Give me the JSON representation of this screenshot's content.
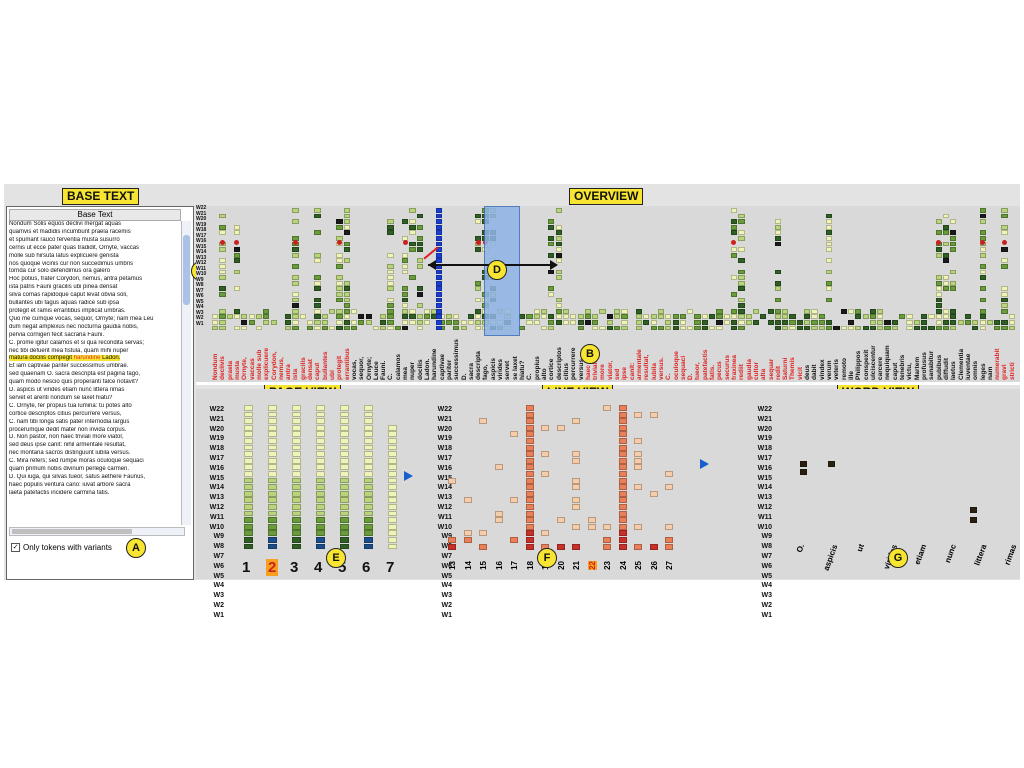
{
  "callouts": {
    "base_text": "BASE TEXT",
    "overview": "OVERVIEW",
    "page_view": "PAGE VIEW",
    "line_view": "LINE VIEW",
    "word_view": "WORD VIEW"
  },
  "markers": {
    "a": "A",
    "b": "B",
    "c": "C",
    "d": "D",
    "e": "E",
    "f": "F",
    "g": "G"
  },
  "base_text": {
    "header": "Base Text",
    "lines": [
      "Nondum Solis equos declivi mergat aquas",
      "quamvis et madidis incumbunt praela racemis",
      "et spumant rauco ferventia musta susurro",
      "cernis ut ecce pater quas tradidit, Ornyte, vaccas",
      "molle sub hirsuta latus explicuere genista",
      "nos quoque vicinis cur non succedimus umbris",
      "torrida cur solo defendimus ora galero",
      "Hoc potius, frater Corydon, nemus, antra petamus",
      "ista patris Fauni gracilis ubi pinea densat",
      "silva comas rapidoque caput levat obvia soli,",
      "bullantes ubi fagus aquas radice sub ipsa",
      "protegit et ramis errantibus implicat umbras.",
      "Quo me cumque vocas, sequor, Ornyte; nam mea Leu",
      "dum negat amplexus nec nocturna gaudia nobis,",
      "pervia cornigeri fecit sacraria Fauni.",
      "C. prome igitur calamos et si qua recondita servas;",
      "nec tibi defuerit mea fistula, quam mihi nuper",
      "matura docilis compegit harundine Ladon.",
      "Et iam captivae pariter successimus umbrae.",
      "sed quaenam O. sacra descripta est pagina fago,",
      "quam modo nescio quis properanti falce notavit?",
      "D. aspicis ut virides etiam nunc littera rimas",
      "servet et arenti nondum se laxet hiatu?",
      "C. Ornyte, fer propius tua lumina: tu potes alto",
      "cortice descriptos citius percurrere versus,",
      "C. nam tibi longa satis pater internodia largus",
      "procerumque dedit mater non invida corpus.",
      "D. Non pastor, non haec triviali more viator,",
      "sed deus ipse canit: nihil armentale resultat,",
      "nec montana sacros distinguunt iubila versus.",
      "C. Mira refers; sed rumpe moras oculoque sequaci",
      "quam primum nobis divinum perlege carmen.",
      "D. Qui iuga, qui silvas tueor, satus aethere Faunus,",
      "haec populis ventura cano: iuvat arbore sacra",
      "laeta patefactis incidere carmina fatis."
    ],
    "highlight_index": 17,
    "highlight_red_word": "harundine",
    "checkbox_label": "Only tokens with variants",
    "checkbox_checked": true
  },
  "overview": {
    "witness_labels": [
      "W22",
      "W21",
      "W20",
      "W19",
      "W18",
      "W17",
      "W16",
      "W15",
      "W14",
      "W13",
      "W12",
      "W11",
      "W10",
      "W9",
      "W8",
      "W7",
      "W6",
      "W5",
      "W4",
      "W3",
      "W2",
      "W1"
    ],
    "words": [
      {
        "t": "Nondum",
        "red": true
      },
      {
        "t": "declivis",
        "red": true
      },
      {
        "t": "praela",
        "red": true
      },
      {
        "t": "musta",
        "red": true
      },
      {
        "t": "Ornyte,",
        "red": true
      },
      {
        "t": "vaccas",
        "red": true
      },
      {
        "t": "molle sub",
        "red": true
      },
      {
        "t": "explicuere",
        "red": true
      },
      {
        "t": "Corydon,",
        "red": true
      },
      {
        "t": "nemus,",
        "red": true
      },
      {
        "t": "antra",
        "red": true
      },
      {
        "t": "ista",
        "red": true
      },
      {
        "t": "gracilis",
        "red": true
      },
      {
        "t": "densat",
        "red": true
      },
      {
        "t": "caput",
        "red": true
      },
      {
        "t": "bullantes",
        "red": true
      },
      {
        "t": "ubi",
        "red": true
      },
      {
        "t": "protegit",
        "red": true
      },
      {
        "t": "errantibus",
        "red": true
      },
      {
        "t": "vocas,",
        "red": false
      },
      {
        "t": "sequor,",
        "red": false
      },
      {
        "t": "Ornyte;",
        "red": false
      },
      {
        "t": "Leuce",
        "red": false
      },
      {
        "t": "Fauni.",
        "red": false
      },
      {
        "t": "C.",
        "red": false
      },
      {
        "t": "calamos",
        "red": false
      },
      {
        "t": "mea",
        "red": false
      },
      {
        "t": "nuper",
        "red": false
      },
      {
        "t": "docilis",
        "red": false
      },
      {
        "t": "Ladon.",
        "red": false
      },
      {
        "t": "harundine",
        "red": false
      },
      {
        "t": "captivae",
        "red": false
      },
      {
        "t": "pariter",
        "red": false
      },
      {
        "t": "successimus",
        "red": false
      },
      {
        "t": "D.",
        "red": false
      },
      {
        "t": "sacra",
        "red": false
      },
      {
        "t": "descripta",
        "red": false
      },
      {
        "t": "fago,",
        "red": false
      },
      {
        "t": "aspicis",
        "red": false
      },
      {
        "t": "virides",
        "red": false
      },
      {
        "t": "servet",
        "red": false
      },
      {
        "t": "se laxet",
        "red": false
      },
      {
        "t": "hiatu?",
        "red": false
      },
      {
        "t": "C.",
        "red": false
      },
      {
        "t": "propius",
        "red": false
      },
      {
        "t": "alto",
        "red": false
      },
      {
        "t": "cortice",
        "red": false
      },
      {
        "t": "descriptos",
        "red": false
      },
      {
        "t": "citius",
        "red": false
      },
      {
        "t": "percurrere",
        "red": false
      },
      {
        "t": "versus,",
        "red": false
      },
      {
        "t": "haec",
        "red": true
      },
      {
        "t": "triviali",
        "red": true
      },
      {
        "t": "more",
        "red": true
      },
      {
        "t": "viator,",
        "red": true
      },
      {
        "t": "sed",
        "red": true
      },
      {
        "t": "ipse",
        "red": true
      },
      {
        "t": "canit:",
        "red": true
      },
      {
        "t": "armentale",
        "red": true
      },
      {
        "t": "resultat,",
        "red": true
      },
      {
        "t": "iubila",
        "red": true
      },
      {
        "t": "versus.",
        "red": true
      },
      {
        "t": "C.",
        "red": true
      },
      {
        "t": "oculoque",
        "red": true
      },
      {
        "t": "sequaci",
        "red": true
      },
      {
        "t": "D.",
        "red": true
      },
      {
        "t": "tueor,",
        "red": true
      },
      {
        "t": "patefactis",
        "red": true
      },
      {
        "t": "fatis.",
        "red": true
      },
      {
        "t": "pecus",
        "red": true
      },
      {
        "t": "securus",
        "red": true
      },
      {
        "t": "fraxinea",
        "red": true
      },
      {
        "t": "rediit",
        "red": true
      },
      {
        "t": "gaudia",
        "red": true
      },
      {
        "t": "cultor",
        "red": true
      },
      {
        "t": "alta",
        "red": true
      },
      {
        "t": "sequar",
        "red": true
      },
      {
        "t": "redit",
        "red": true
      },
      {
        "t": "Saturni",
        "red": true
      },
      {
        "t": "Themis",
        "red": true
      },
      {
        "t": "vicit",
        "red": true
      },
      {
        "t": "deus",
        "red": false
      },
      {
        "t": "dabit",
        "red": false
      },
      {
        "t": "vindex",
        "red": false
      },
      {
        "t": "verum",
        "red": false
      },
      {
        "t": "veteris",
        "red": false
      },
      {
        "t": "remoto",
        "red": false
      },
      {
        "t": "ille",
        "red": false
      },
      {
        "t": "Philippos",
        "red": false
      },
      {
        "t": "conspexit",
        "red": false
      },
      {
        "t": "ulciscentur",
        "red": false
      },
      {
        "t": "carcere",
        "red": false
      },
      {
        "t": "nequiquam",
        "red": false
      },
      {
        "t": "caput",
        "red": false
      },
      {
        "t": "tenebris",
        "red": false
      },
      {
        "t": "victu,",
        "red": false
      },
      {
        "t": "Martem",
        "red": false
      },
      {
        "t": "profusus",
        "red": false
      },
      {
        "t": "sanabitur",
        "red": false
      },
      {
        "t": "pubibus",
        "red": false
      },
      {
        "t": "diffudit",
        "red": false
      },
      {
        "t": "laetus",
        "red": false
      },
      {
        "t": "Clementia",
        "red": false
      },
      {
        "t": "iuventae",
        "red": false
      },
      {
        "t": "omnis",
        "red": false
      },
      {
        "t": "leges",
        "red": false
      },
      {
        "t": "nam",
        "red": false
      },
      {
        "t": "numerabit",
        "red": true
      },
      {
        "t": "gravi",
        "red": true
      },
      {
        "t": "stricti",
        "red": true
      }
    ]
  },
  "page_view": {
    "witness_labels": [
      "W22",
      "W21",
      "W20",
      "W19",
      "W18",
      "W17",
      "W16",
      "W15",
      "W14",
      "W13",
      "W12",
      "W11",
      "W10",
      "W9",
      "W8",
      "W7",
      "W6",
      "W5",
      "W4",
      "W3",
      "W2",
      "W1"
    ],
    "pages": [
      "1",
      "2",
      "3",
      "4",
      "5",
      "6",
      "7"
    ],
    "selected_page": "2"
  },
  "line_view": {
    "witness_labels": [
      "W22",
      "W21",
      "W20",
      "W19",
      "W18",
      "W17",
      "W16",
      "W15",
      "W14",
      "W13",
      "W12",
      "W11",
      "W10",
      "W9",
      "W8",
      "W7",
      "W6",
      "W5",
      "W4",
      "W3",
      "W2",
      "W1"
    ],
    "lines": [
      "13",
      "14",
      "15",
      "16",
      "17",
      "18",
      "19",
      "20",
      "21",
      "22",
      "23",
      "24",
      "25",
      "26",
      "27"
    ],
    "selected_line": "22"
  },
  "word_view": {
    "witness_labels": [
      "W22",
      "W21",
      "W20",
      "W19",
      "W18",
      "W17",
      "W16",
      "W15",
      "W14",
      "W13",
      "W12",
      "W11",
      "W10",
      "W9",
      "W8",
      "W7",
      "W6",
      "W5",
      "W4",
      "W3",
      "W2",
      "W1"
    ],
    "words": [
      "O.",
      "aspicis",
      "ut",
      "virides",
      "etiam",
      "nunc",
      "littera",
      "rimas"
    ]
  },
  "colors": {
    "light": "#eef3b8",
    "mid": "#b9d47c",
    "dark": "#6a9c3c",
    "darkest": "#2f5f24",
    "blue_page": "#1d4e8c",
    "orange_light": "#f6cdaa",
    "orange": "#e9805a",
    "red": "#c8302a",
    "highlight_col": "#1b3fd6",
    "selection": "#8fb4e6"
  }
}
